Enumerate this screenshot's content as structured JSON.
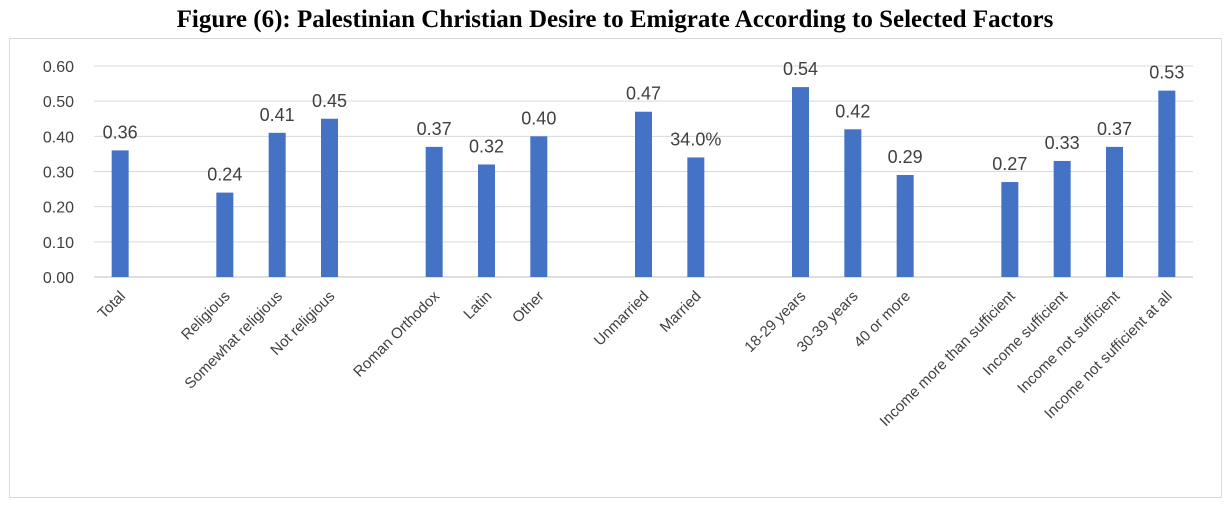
{
  "chart_data": {
    "type": "bar",
    "title": "Figure (6): Palestinian Christian Desire to Emigrate According to Selected Factors",
    "xlabel": "",
    "ylabel": "",
    "ylim": [
      0,
      0.6
    ],
    "yticks": [
      "0.00",
      "0.10",
      "0.20",
      "0.30",
      "0.40",
      "0.50",
      "0.60"
    ],
    "grid": true,
    "legend": "none",
    "bar_color": "#4472c4",
    "categories": [
      "Total",
      "",
      "Religious",
      "Somewhat religious",
      "Not religious",
      "",
      "Roman Orthodox",
      "Latin",
      "Other",
      "",
      "Unmarried",
      "Married",
      "",
      "18-29 years",
      "30-39 years",
      "40 or more",
      "",
      "Income more than sufficient",
      "Income sufficient",
      "Income not sufficient",
      "Income not sufficient at all"
    ],
    "values": [
      0.36,
      null,
      0.24,
      0.41,
      0.45,
      null,
      0.37,
      0.32,
      0.4,
      null,
      0.47,
      0.34,
      null,
      0.54,
      0.42,
      0.29,
      null,
      0.27,
      0.33,
      0.37,
      0.53
    ],
    "data_labels": [
      "0.36",
      "",
      "0.24",
      "0.41",
      "0.45",
      "",
      "0.37",
      "0.32",
      "0.40",
      "",
      "0.47",
      "34.0%",
      "",
      "0.54",
      "0.42",
      "0.29",
      "",
      "0.27",
      "0.33",
      "0.37",
      "0.53"
    ]
  }
}
